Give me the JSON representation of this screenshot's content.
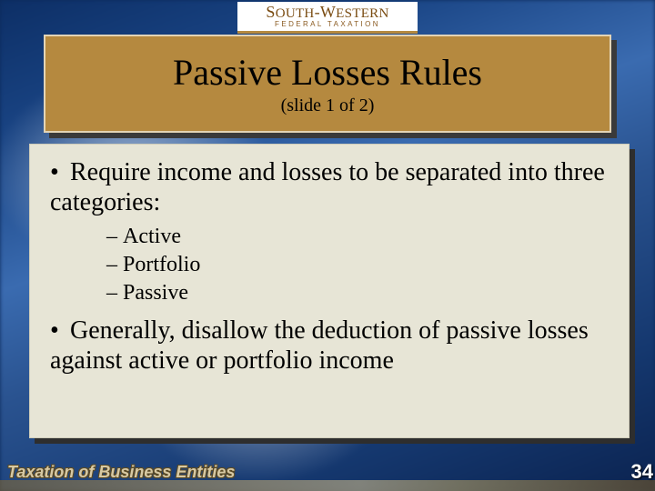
{
  "colors": {
    "title_bg": "#b5893f",
    "title_border": "#e3d4b6",
    "body_bg": "#e7e5d6",
    "body_border": "#cfccb9",
    "shadow": "#3a3a3a",
    "page_bg": "#0c2a5a",
    "footer_text": "#d7c9a4",
    "brand_text": "#7a4c12",
    "brand_underline": "#b5893f",
    "pagenum_text": "#ffffff"
  },
  "typography": {
    "title_fontsize": 40,
    "subtitle_fontsize": 20,
    "bullet_fontsize": 28,
    "subbullet_fontsize": 24,
    "footer_fontsize": 18,
    "pagenum_fontsize": 22,
    "font_family": "Times New Roman"
  },
  "brand": {
    "line1_a": "S",
    "line1_b": "OUTH",
    "line1_c": "-W",
    "line1_d": "ESTERN",
    "line2": "FEDERAL TAXATION"
  },
  "title": {
    "main": "Passive Losses Rules",
    "sub": "(slide 1 of 2)"
  },
  "bullets": [
    {
      "text": "Require income and losses to be separated into three categories:",
      "sub": [
        "Active",
        "Portfolio",
        "Passive"
      ]
    },
    {
      "text": "Generally, disallow the deduction of passive losses against active or portfolio income",
      "sub": []
    }
  ],
  "footer": {
    "left": "Taxation of Business Entities",
    "page": "34"
  }
}
